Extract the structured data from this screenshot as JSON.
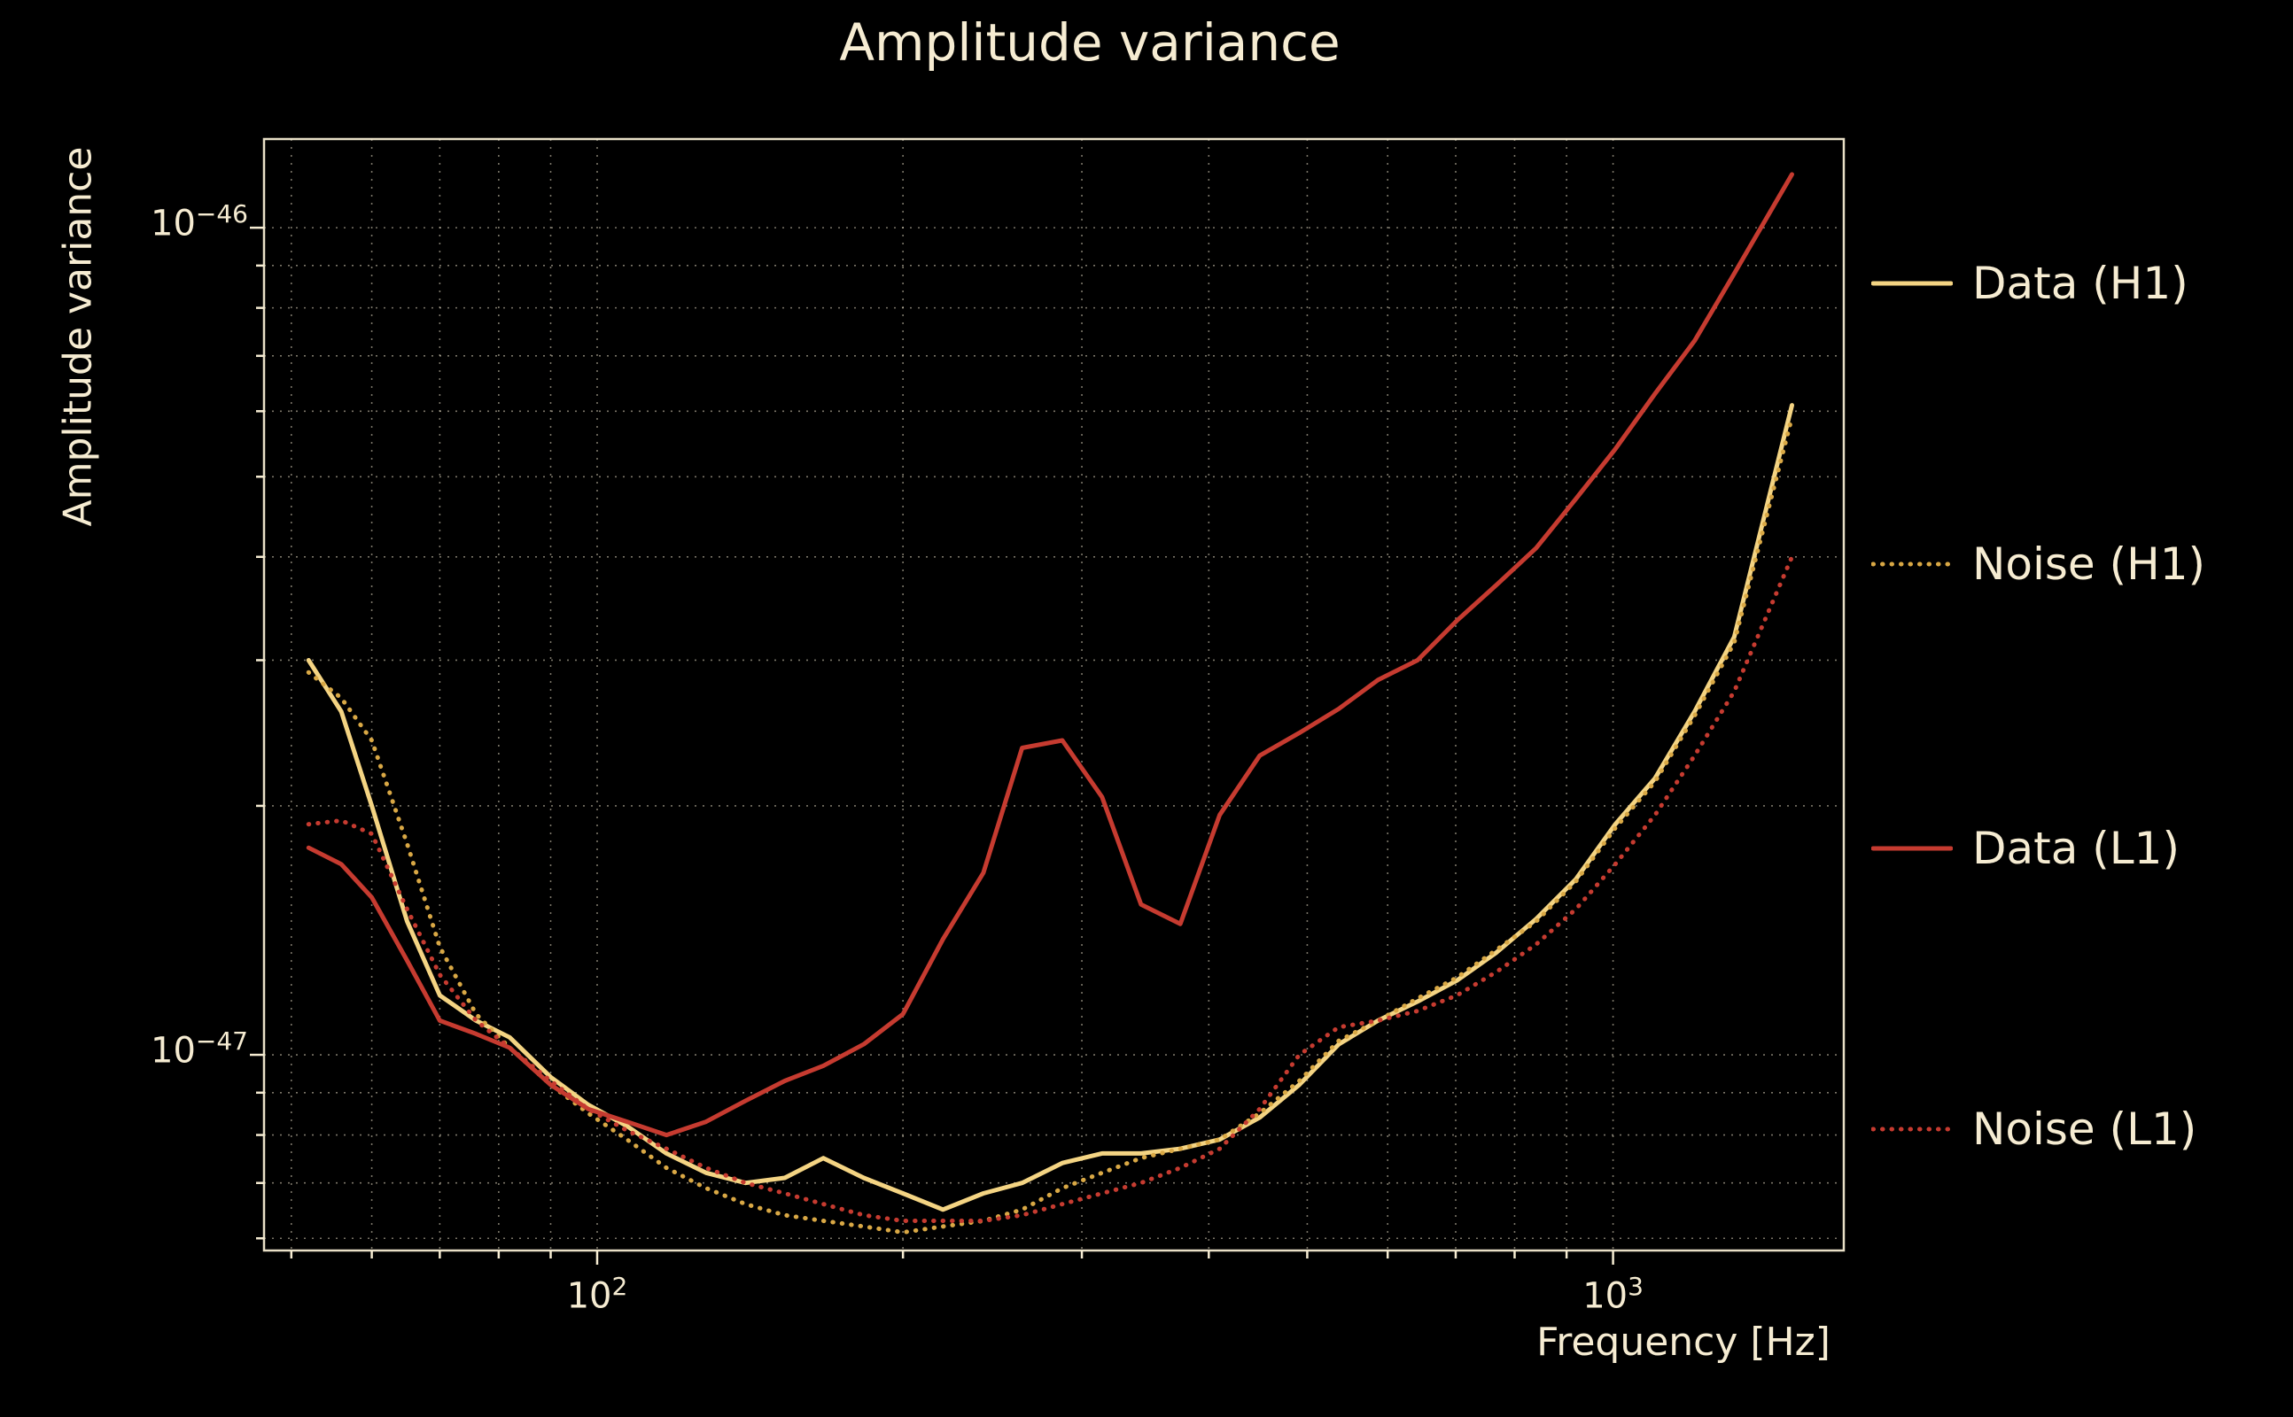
{
  "title": "Amplitude variance",
  "axes": {
    "ylabel": "Amplitude variance",
    "xlabel": "Frequency [Hz]",
    "x_ticks": [
      {
        "value": 100,
        "base": "10",
        "exp": "2"
      },
      {
        "value": 1000,
        "base": "10",
        "exp": "3"
      }
    ],
    "y_ticks": [
      {
        "value": 1e-46,
        "base": "10",
        "exp": "−46"
      },
      {
        "value": 1e-47,
        "base": "10",
        "exp": "−47"
      }
    ]
  },
  "colors": {
    "background": "#000000",
    "text": "#f6ecd2",
    "grid": "#f6ecd2",
    "frame": "#f6ecd2",
    "h1_data": "#f4d483",
    "h1_noise": "#d9a845",
    "l1_data": "#c63b30",
    "l1_noise": "#c63b30"
  },
  "chart_data": {
    "type": "line",
    "title": "Amplitude variance",
    "xlabel": "Frequency [Hz]",
    "ylabel": "Amplitude variance",
    "xscale": "log",
    "yscale": "log",
    "xlim": [
      47,
      1687
    ],
    "ylim": [
      5.8e-48,
      1.28e-46
    ],
    "grid": true,
    "legend_position": "right",
    "grid_x": [
      50,
      60,
      70,
      80,
      90,
      100,
      200,
      300,
      400,
      500,
      600,
      700,
      800,
      900,
      1000
    ],
    "grid_y": [
      6e-48,
      7e-48,
      8e-48,
      9e-48,
      1e-47,
      2e-47,
      3e-47,
      4e-47,
      5e-47,
      6e-47,
      7e-47,
      8e-47,
      9e-47,
      1e-46
    ],
    "x_major_ticks": [
      100,
      1000
    ],
    "y_major_ticks": [
      1e-47,
      1e-46
    ],
    "x": [
      52,
      56,
      60,
      65,
      70,
      76,
      82,
      90,
      98,
      107,
      117,
      128,
      140,
      153,
      167,
      183,
      200,
      219,
      240,
      262,
      287,
      314,
      343,
      375,
      410,
      449,
      491,
      537,
      587,
      642,
      702,
      768,
      840,
      919,
      1005,
      1100,
      1203,
      1316,
      1500
    ],
    "series": [
      {
        "name": "Data (H1)",
        "color": "#f4d483",
        "style": "solid",
        "values": [
          3e-47,
          2.6e-47,
          2e-47,
          1.45e-47,
          1.18e-47,
          1.1e-47,
          1.05e-47,
          9.4e-48,
          8.7e-48,
          8.2e-48,
          7.6e-48,
          7.2e-48,
          7e-48,
          7.1e-48,
          7.5e-48,
          7.1e-48,
          6.8e-48,
          6.5e-48,
          6.8e-48,
          7e-48,
          7.4e-48,
          7.6e-48,
          7.6e-48,
          7.7e-48,
          7.9e-48,
          8.4e-48,
          9.2e-48,
          1.03e-47,
          1.1e-47,
          1.16e-47,
          1.23e-47,
          1.33e-47,
          1.46e-47,
          1.63e-47,
          1.9e-47,
          2.16e-47,
          2.6e-47,
          3.2e-47,
          6.1e-47
        ]
      },
      {
        "name": "Noise (H1)",
        "color": "#d9a845",
        "style": "dotted",
        "values": [
          2.9e-47,
          2.7e-47,
          2.4e-47,
          1.8e-47,
          1.35e-47,
          1.12e-47,
          1.02e-47,
          9.2e-48,
          8.5e-48,
          7.9e-48,
          7.3e-48,
          6.9e-48,
          6.6e-48,
          6.4e-48,
          6.3e-48,
          6.2e-48,
          6.1e-48,
          6.2e-48,
          6.3e-48,
          6.5e-48,
          6.9e-48,
          7.2e-48,
          7.5e-48,
          7.7e-48,
          7.9e-48,
          8.5e-48,
          9.3e-48,
          1.04e-47,
          1.1e-47,
          1.17e-47,
          1.24e-47,
          1.34e-47,
          1.45e-47,
          1.62e-47,
          1.88e-47,
          2.14e-47,
          2.57e-47,
          3.15e-47,
          5.9e-47
        ]
      },
      {
        "name": "Data (L1)",
        "color": "#c63b30",
        "style": "solid",
        "values": [
          1.78e-47,
          1.7e-47,
          1.55e-47,
          1.3e-47,
          1.1e-47,
          1.06e-47,
          1.02e-47,
          9.2e-48,
          8.6e-48,
          8.3e-48,
          8e-48,
          8.3e-48,
          8.8e-48,
          9.3e-48,
          9.7e-48,
          1.03e-47,
          1.12e-47,
          1.38e-47,
          1.66e-47,
          2.35e-47,
          2.4e-47,
          2.05e-47,
          1.52e-47,
          1.44e-47,
          1.95e-47,
          2.3e-47,
          2.45e-47,
          2.62e-47,
          2.84e-47,
          3e-47,
          3.35e-47,
          3.7e-47,
          4.1e-47,
          4.7e-47,
          5.4e-47,
          6.3e-47,
          7.3e-47,
          8.8e-47,
          1.16e-46
        ]
      },
      {
        "name": "Noise (L1)",
        "color": "#c63b30",
        "style": "dotted",
        "values": [
          1.9e-47,
          1.92e-47,
          1.85e-47,
          1.5e-47,
          1.25e-47,
          1.1e-47,
          1.02e-47,
          9.3e-48,
          8.6e-48,
          8.1e-48,
          7.7e-48,
          7.3e-48,
          7e-48,
          6.8e-48,
          6.6e-48,
          6.4e-48,
          6.3e-48,
          6.3e-48,
          6.3e-48,
          6.4e-48,
          6.6e-48,
          6.8e-48,
          7e-48,
          7.3e-48,
          7.7e-48,
          8.6e-48,
          1e-47,
          1.08e-47,
          1.1e-47,
          1.13e-47,
          1.18e-47,
          1.26e-47,
          1.36e-47,
          1.5e-47,
          1.7e-47,
          1.95e-47,
          2.3e-47,
          2.75e-47,
          4e-47
        ]
      }
    ]
  }
}
